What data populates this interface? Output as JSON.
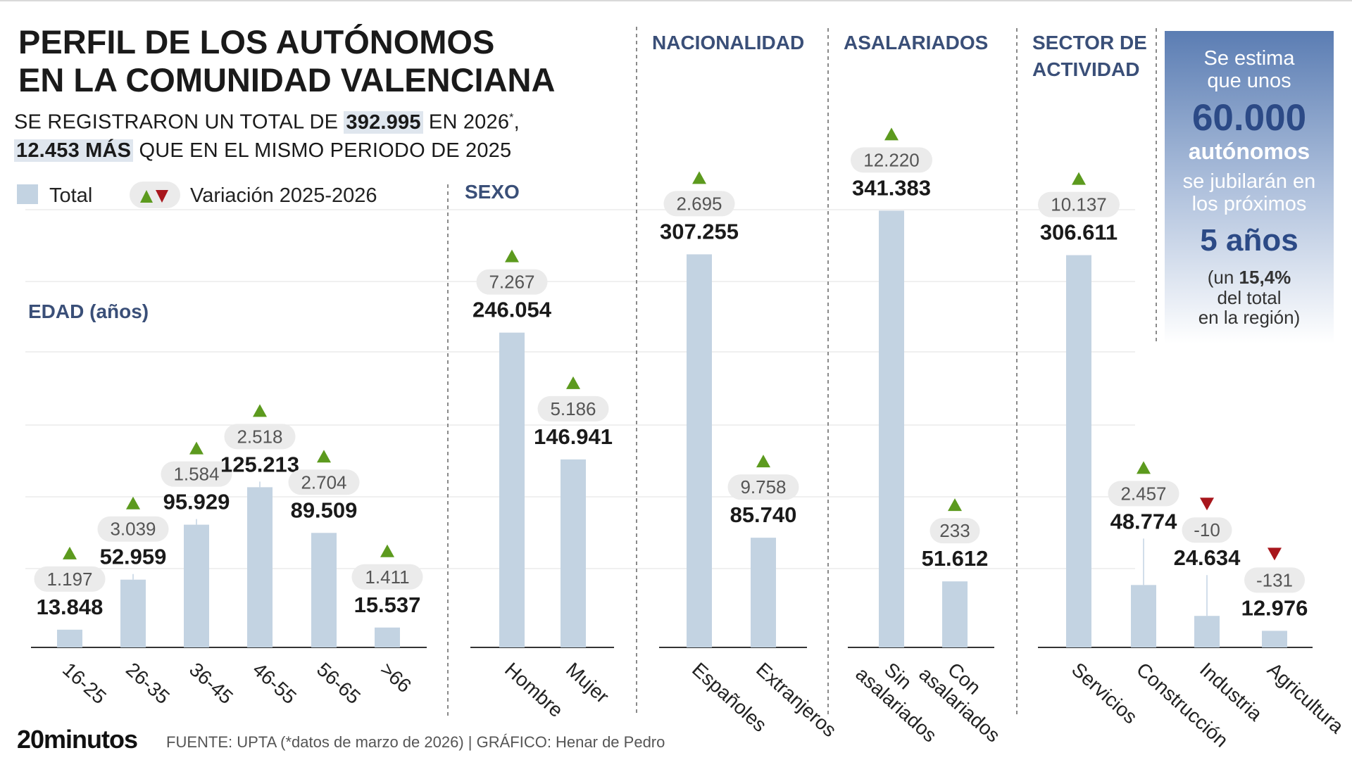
{
  "title": [
    "PERFIL DE LOS AUTÓNOMOS",
    "EN LA COMUNIDAD VALENCIANA"
  ],
  "subtitle": {
    "part1": "SE REGISTRARON UN TOTAL DE ",
    "total": "392.995",
    "part2": " EN 2026",
    "asterisk": "*",
    "comma": ",",
    "increase": "12.453 MÁS",
    "part3": " QUE EN EL MISMO PERIODO DE 2025"
  },
  "legend": {
    "total_label": "Total",
    "variation_label": "Variación 2025-2026"
  },
  "colors": {
    "bar": "#c3d3e2",
    "up": "#5c9a1e",
    "down": "#a8161c",
    "heading": "#3a4f78",
    "gridline": "#ececec",
    "badge": "#ebebeb"
  },
  "callout": {
    "line1": "Se estima",
    "line2": "que unos",
    "number": "60.000",
    "bold_word": "autónomos",
    "line3": "se jubilarán en",
    "line4": "los próximos",
    "years": "5 años",
    "pct_prefix": "(un ",
    "pct": "15,4%",
    "line5": "del total",
    "line6": "en la región)"
  },
  "footer": {
    "logo": "20minutos",
    "source": "FUENTE: UPTA (*datos de marzo de 2026)  |  GRÁFICO: Henar de Pedro"
  },
  "chart_data": [
    {
      "type": "bar",
      "title": "EDAD (años)",
      "categories": [
        "16-25",
        "26-35",
        "36-45",
        "46-55",
        "56-65",
        ">66"
      ],
      "values": [
        13848,
        52959,
        95929,
        125213,
        89509,
        15537
      ],
      "value_labels": [
        "13.848",
        "52.959",
        "95.929",
        "125.213",
        "89.509",
        "15.537"
      ],
      "variation": [
        1197,
        3039,
        1584,
        2518,
        2704,
        1411
      ],
      "variation_labels": [
        "1.197",
        "3.039",
        "1.584",
        "2.518",
        "2.704",
        "1.411"
      ],
      "direction": [
        "up",
        "up",
        "up",
        "up",
        "up",
        "up"
      ]
    },
    {
      "type": "bar",
      "title": "SEXO",
      "categories": [
        "Hombre",
        "Mujer"
      ],
      "values": [
        246054,
        146941
      ],
      "value_labels": [
        "246.054",
        "146.941"
      ],
      "variation": [
        7267,
        5186
      ],
      "variation_labels": [
        "7.267",
        "5.186"
      ],
      "direction": [
        "up",
        "up"
      ]
    },
    {
      "type": "bar",
      "title": "NACIONALIDAD",
      "categories": [
        "Españoles",
        "Extranjeros"
      ],
      "values": [
        307255,
        85740
      ],
      "value_labels": [
        "307.255",
        "85.740"
      ],
      "variation": [
        2695,
        9758
      ],
      "variation_labels": [
        "2.695",
        "9.758"
      ],
      "direction": [
        "up",
        "up"
      ]
    },
    {
      "type": "bar",
      "title": "ASALARIADOS",
      "categories": [
        "Sin asalariados",
        "Con asalariados"
      ],
      "values": [
        341383,
        51612
      ],
      "value_labels": [
        "341.383",
        "51.612"
      ],
      "variation": [
        12220,
        233
      ],
      "variation_labels": [
        "12.220",
        "233"
      ],
      "direction": [
        "up",
        "up"
      ]
    },
    {
      "type": "bar",
      "title": "SECTOR DE ACTIVIDAD",
      "categories": [
        "Servicios",
        "Construcción",
        "Industria",
        "Agricultura"
      ],
      "values": [
        306611,
        48774,
        24634,
        12976
      ],
      "value_labels": [
        "306.611",
        "48.774",
        "24.634",
        "12.976"
      ],
      "variation": [
        10137,
        2457,
        -10,
        -131
      ],
      "variation_labels": [
        "10.137",
        "2.457",
        "-10",
        "-131"
      ],
      "direction": [
        "up",
        "up",
        "down",
        "down"
      ]
    }
  ]
}
